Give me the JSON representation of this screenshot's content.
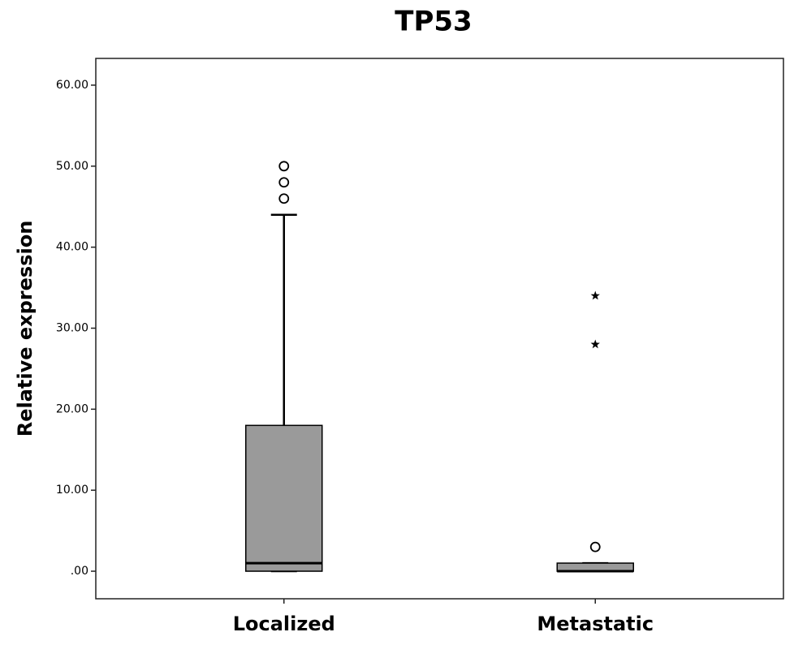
{
  "chart_data": {
    "type": "box",
    "title": "TP53",
    "y_label": "Relative expression",
    "categories": [
      "Localized",
      "Metastatic"
    ],
    "color": "#9a9a9a",
    "boxes": [
      {
        "min": 0,
        "q1": 0,
        "median": 1,
        "q3": 18,
        "max": 44,
        "outliers": [
          46,
          48,
          50
        ],
        "extremes": []
      },
      {
        "min": 0,
        "q1": 0,
        "median": 0,
        "q3": 1,
        "max": 1,
        "outliers": [
          3
        ],
        "extremes": [
          28,
          34
        ]
      }
    ],
    "ylim": [
      -3.4,
      63.3
    ],
    "yticks": [
      {
        "value": 0,
        "label": ".00"
      },
      {
        "value": 10,
        "label": "10.00"
      },
      {
        "value": 20,
        "label": "20.00"
      },
      {
        "value": 30,
        "label": "30.00"
      },
      {
        "value": 40,
        "label": "40.00"
      },
      {
        "value": 50,
        "label": "50.00"
      },
      {
        "value": 60,
        "label": "60.00"
      }
    ]
  }
}
